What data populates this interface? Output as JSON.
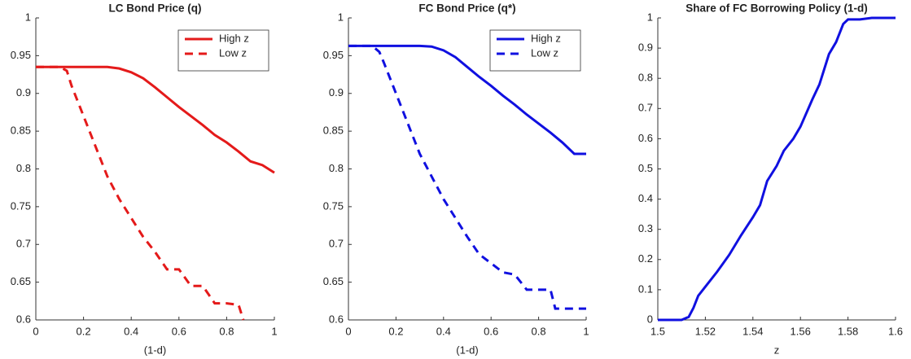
{
  "chart_data": [
    {
      "type": "line",
      "title": "LC Bond Price (q)",
      "xlabel": "(1-d)",
      "xlim": [
        0,
        1
      ],
      "ylim": [
        0.6,
        1
      ],
      "xticks": [
        0,
        0.2,
        0.4,
        0.6,
        0.8,
        1
      ],
      "yticks": [
        0.6,
        0.65,
        0.7,
        0.75,
        0.8,
        0.85,
        0.9,
        0.95,
        1
      ],
      "legend": "upper right",
      "series": [
        {
          "name": "High z",
          "color": "#e41a1a",
          "style": "solid",
          "x": [
            0,
            0.1,
            0.2,
            0.3,
            0.35,
            0.4,
            0.45,
            0.5,
            0.55,
            0.6,
            0.65,
            0.7,
            0.75,
            0.8,
            0.85,
            0.9,
            0.95,
            1
          ],
          "values": [
            0.935,
            0.935,
            0.935,
            0.935,
            0.933,
            0.928,
            0.92,
            0.908,
            0.895,
            0.882,
            0.87,
            0.858,
            0.845,
            0.835,
            0.823,
            0.81,
            0.805,
            0.795
          ]
        },
        {
          "name": "Low z",
          "color": "#e41a1a",
          "style": "dashed",
          "x": [
            0,
            0.1,
            0.13,
            0.15,
            0.2,
            0.25,
            0.3,
            0.35,
            0.4,
            0.45,
            0.5,
            0.55,
            0.6,
            0.65,
            0.7,
            0.75,
            0.8,
            0.85,
            0.87
          ],
          "values": [
            0.935,
            0.935,
            0.93,
            0.91,
            0.87,
            0.83,
            0.79,
            0.76,
            0.735,
            0.71,
            0.69,
            0.667,
            0.667,
            0.645,
            0.645,
            0.622,
            0.622,
            0.62,
            0.6
          ]
        }
      ]
    },
    {
      "type": "line",
      "title": "FC Bond Price (q*)",
      "xlabel": "(1-d)",
      "xlim": [
        0,
        1
      ],
      "ylim": [
        0.6,
        1
      ],
      "xticks": [
        0,
        0.2,
        0.4,
        0.6,
        0.8,
        1
      ],
      "yticks": [
        0.6,
        0.65,
        0.7,
        0.75,
        0.8,
        0.85,
        0.9,
        0.95,
        1
      ],
      "legend": "upper right",
      "series": [
        {
          "name": "High z",
          "color": "#1010e0",
          "style": "solid",
          "x": [
            0,
            0.1,
            0.2,
            0.3,
            0.35,
            0.4,
            0.45,
            0.5,
            0.55,
            0.6,
            0.65,
            0.7,
            0.75,
            0.8,
            0.85,
            0.9,
            0.95,
            1
          ],
          "values": [
            0.963,
            0.963,
            0.963,
            0.963,
            0.962,
            0.957,
            0.948,
            0.935,
            0.922,
            0.91,
            0.897,
            0.885,
            0.872,
            0.86,
            0.848,
            0.835,
            0.82,
            0.82
          ]
        },
        {
          "name": "Low z",
          "color": "#1010e0",
          "style": "dashed",
          "x": [
            0,
            0.1,
            0.13,
            0.15,
            0.2,
            0.25,
            0.3,
            0.35,
            0.4,
            0.45,
            0.5,
            0.55,
            0.6,
            0.65,
            0.7,
            0.75,
            0.8,
            0.85,
            0.87,
            1
          ],
          "values": [
            0.963,
            0.963,
            0.955,
            0.94,
            0.9,
            0.86,
            0.82,
            0.79,
            0.76,
            0.735,
            0.71,
            0.687,
            0.675,
            0.663,
            0.66,
            0.64,
            0.64,
            0.64,
            0.615,
            0.615
          ]
        }
      ]
    },
    {
      "type": "line",
      "title": "Share of FC Borrowing Policy (1-d)",
      "xlabel": "z",
      "xlim": [
        1.5,
        1.6
      ],
      "ylim": [
        0,
        1
      ],
      "xticks": [
        1.5,
        1.52,
        1.54,
        1.56,
        1.58,
        1.6
      ],
      "yticks": [
        0,
        0.1,
        0.2,
        0.3,
        0.4,
        0.5,
        0.6,
        0.7,
        0.8,
        0.9,
        1
      ],
      "series": [
        {
          "color": "#1010e0",
          "style": "solid",
          "x": [
            1.5,
            1.51,
            1.513,
            1.515,
            1.517,
            1.52,
            1.525,
            1.53,
            1.535,
            1.54,
            1.543,
            1.546,
            1.55,
            1.553,
            1.557,
            1.56,
            1.565,
            1.568,
            1.572,
            1.575,
            1.578,
            1.58,
            1.585,
            1.59,
            1.6
          ],
          "values": [
            0,
            0,
            0.01,
            0.04,
            0.08,
            0.11,
            0.16,
            0.215,
            0.28,
            0.34,
            0.38,
            0.46,
            0.51,
            0.56,
            0.6,
            0.64,
            0.73,
            0.78,
            0.88,
            0.92,
            0.98,
            0.995,
            0.995,
            1,
            1
          ]
        }
      ]
    }
  ]
}
